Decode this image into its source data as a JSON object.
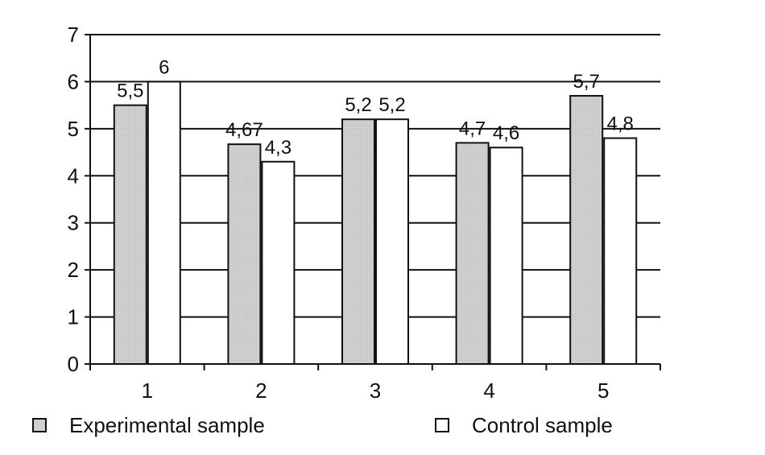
{
  "chart_data": {
    "type": "bar",
    "categories": [
      "1",
      "2",
      "3",
      "4",
      "5"
    ],
    "series": [
      {
        "name": "Experimental sample",
        "values": [
          5.5,
          4.67,
          5.2,
          4.7,
          5.7
        ],
        "labels": [
          "5,5",
          "4,67",
          "5,2",
          "4,7",
          "5,7"
        ],
        "color": "#cfcfcf"
      },
      {
        "name": "Control sample",
        "values": [
          6,
          4.3,
          5.2,
          4.6,
          4.8
        ],
        "labels": [
          "6",
          "4,3",
          "5,2",
          "4,6",
          "4,8"
        ],
        "color": "#ffffff"
      }
    ],
    "yticks": [
      "0",
      "1",
      "2",
      "3",
      "4",
      "5",
      "6",
      "7"
    ],
    "ylim": [
      0,
      7
    ],
    "grid": true,
    "legend_position": "bottom"
  }
}
